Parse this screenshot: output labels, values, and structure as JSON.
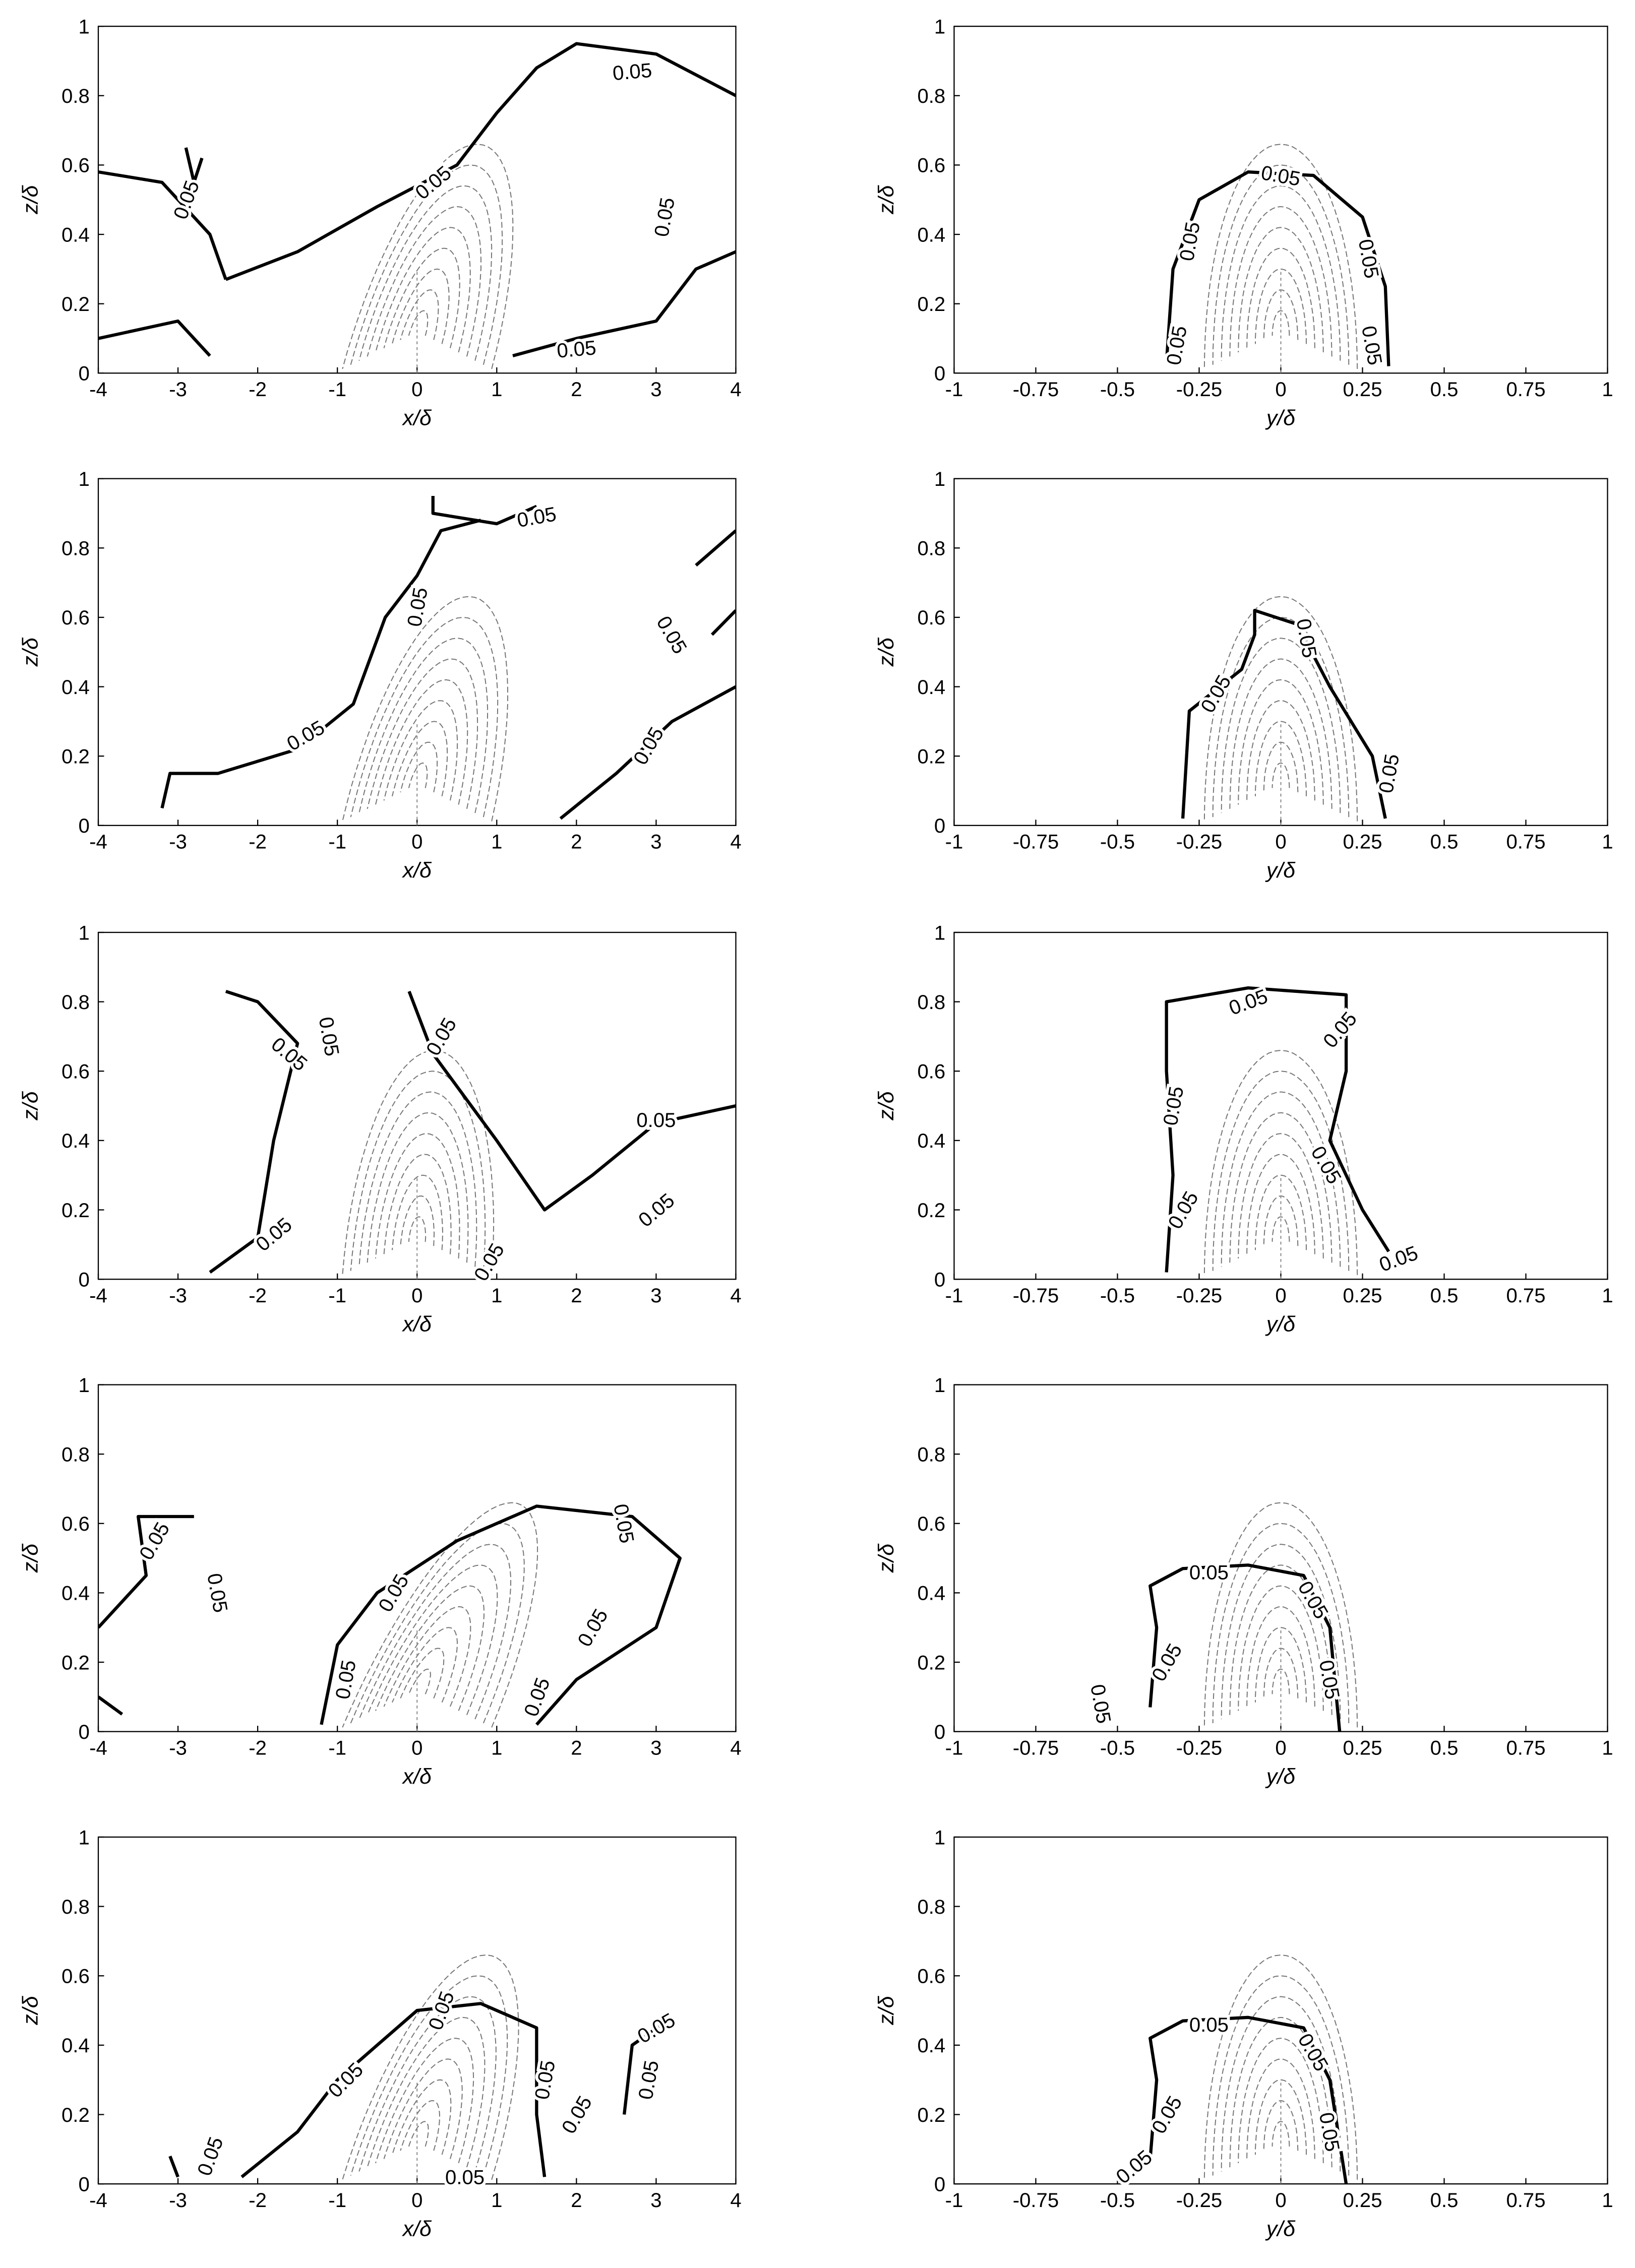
{
  "chart_data": [
    {
      "type": "contour",
      "xlabel": "x/δ",
      "ylabel": "z/δ",
      "xlim": [
        -4,
        4
      ],
      "xticks": [
        -4,
        -3,
        -2,
        -1,
        0,
        1,
        2,
        3,
        4
      ],
      "ylim": [
        0,
        1
      ],
      "yticks": [
        0,
        0.2,
        0.4,
        0.6,
        0.8,
        1
      ],
      "contour_level": 0.05
    },
    {
      "type": "contour",
      "xlabel": "y/δ",
      "ylabel": "z/δ",
      "xlim": [
        -1,
        1
      ],
      "xticks": [
        -1,
        -0.75,
        -0.5,
        -0.25,
        0,
        0.25,
        0.5,
        0.75,
        1
      ],
      "ylim": [
        0,
        1
      ],
      "yticks": [
        0,
        0.2,
        0.4,
        0.6,
        0.8,
        1
      ],
      "contour_level": 0.05
    },
    {
      "type": "contour",
      "xlabel": "x/δ",
      "ylabel": "z/δ",
      "xlim": [
        -4,
        4
      ],
      "xticks": [
        -4,
        -3,
        -2,
        -1,
        0,
        1,
        2,
        3,
        4
      ],
      "ylim": [
        0,
        1
      ],
      "yticks": [
        0,
        0.2,
        0.4,
        0.6,
        0.8,
        1
      ],
      "contour_level": 0.05
    },
    {
      "type": "contour",
      "xlabel": "y/δ",
      "ylabel": "z/δ",
      "xlim": [
        -1,
        1
      ],
      "xticks": [
        -1,
        -0.75,
        -0.5,
        -0.25,
        0,
        0.25,
        0.5,
        0.75,
        1
      ],
      "ylim": [
        0,
        1
      ],
      "yticks": [
        0,
        0.2,
        0.4,
        0.6,
        0.8,
        1
      ],
      "contour_level": 0.05
    },
    {
      "type": "contour",
      "xlabel": "x/δ",
      "ylabel": "z/δ",
      "xlim": [
        -4,
        4
      ],
      "xticks": [
        -4,
        -3,
        -2,
        -1,
        0,
        1,
        2,
        3,
        4
      ],
      "ylim": [
        0,
        1
      ],
      "yticks": [
        0,
        0.2,
        0.4,
        0.6,
        0.8,
        1
      ],
      "contour_level": 0.05
    },
    {
      "type": "contour",
      "xlabel": "y/δ",
      "ylabel": "z/δ",
      "xlim": [
        -1,
        1
      ],
      "xticks": [
        -1,
        -0.75,
        -0.5,
        -0.25,
        0,
        0.25,
        0.5,
        0.75,
        1
      ],
      "ylim": [
        0,
        1
      ],
      "yticks": [
        0,
        0.2,
        0.4,
        0.6,
        0.8,
        1
      ],
      "contour_level": 0.05
    },
    {
      "type": "contour",
      "xlabel": "x/δ",
      "ylabel": "z/δ",
      "xlim": [
        -4,
        4
      ],
      "xticks": [
        -4,
        -3,
        -2,
        -1,
        0,
        1,
        2,
        3,
        4
      ],
      "ylim": [
        0,
        1
      ],
      "yticks": [
        0,
        0.2,
        0.4,
        0.6,
        0.8,
        1
      ],
      "contour_level": 0.05
    },
    {
      "type": "contour",
      "xlabel": "y/δ",
      "ylabel": "z/δ",
      "xlim": [
        -1,
        1
      ],
      "xticks": [
        -1,
        -0.75,
        -0.5,
        -0.25,
        0,
        0.25,
        0.5,
        0.75,
        1
      ],
      "ylim": [
        0,
        1
      ],
      "yticks": [
        0,
        0.2,
        0.4,
        0.6,
        0.8,
        1
      ],
      "contour_level": 0.05
    },
    {
      "type": "contour",
      "xlabel": "x/δ",
      "ylabel": "z/δ",
      "xlim": [
        -4,
        4
      ],
      "xticks": [
        -4,
        -3,
        -2,
        -1,
        0,
        1,
        2,
        3,
        4
      ],
      "ylim": [
        0,
        1
      ],
      "yticks": [
        0,
        0.2,
        0.4,
        0.6,
        0.8,
        1
      ],
      "contour_level": 0.05
    },
    {
      "type": "contour",
      "xlabel": "y/δ",
      "ylabel": "z/δ",
      "xlim": [
        -1,
        1
      ],
      "xticks": [
        -1,
        -0.75,
        -0.5,
        -0.25,
        0,
        0.25,
        0.5,
        0.75,
        1
      ],
      "ylim": [
        0,
        1
      ],
      "yticks": [
        0,
        0.2,
        0.4,
        0.6,
        0.8,
        1
      ],
      "contour_level": 0.05
    }
  ]
}
